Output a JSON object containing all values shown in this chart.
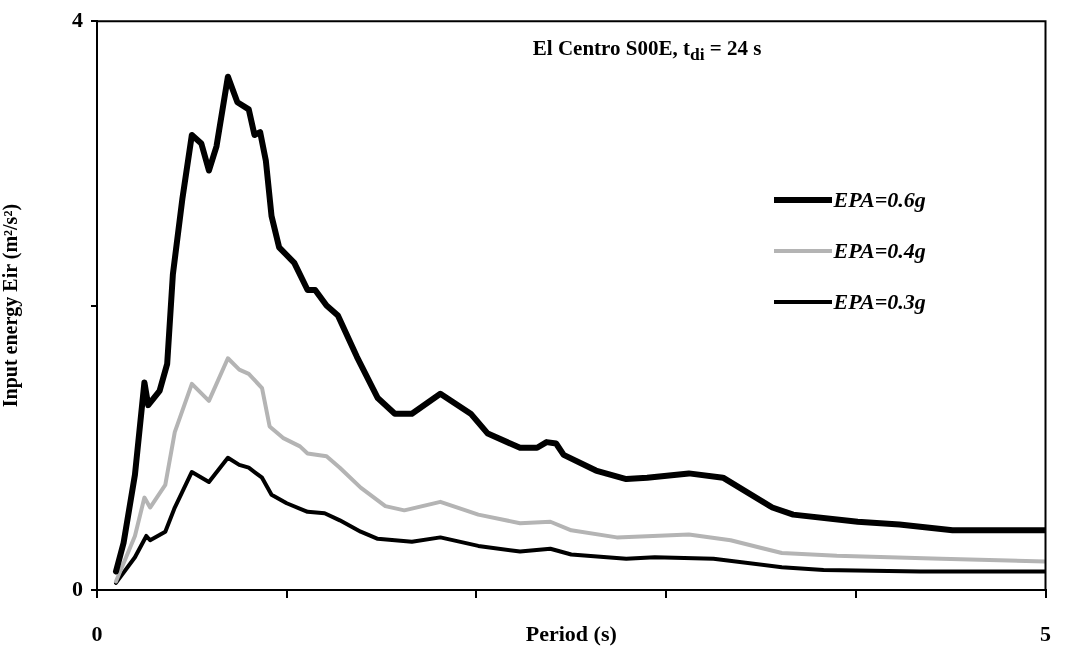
{
  "chart_data": {
    "type": "line",
    "title": "El Centro S00E, t$_{di}$ = 24 s",
    "xlabel": "Period (s)",
    "ylabel": "Input energy Eir (m²/s²)",
    "xlim": [
      0,
      5
    ],
    "xticks": [
      0,
      {
        "value": 1,
        "label": null
      },
      {
        "value": 2,
        "label": null
      },
      {
        "value": 3,
        "label": null
      },
      {
        "value": 4,
        "label": null
      },
      5
    ],
    "ylim": [
      0,
      4
    ],
    "yticks": [
      0,
      {
        "value": 2,
        "label": null
      },
      4
    ],
    "grid": false,
    "legend": "right",
    "marker": "none",
    "line_style": "solid",
    "series": [
      {
        "name": "EPA=0.6g",
        "color": "#000000",
        "x": [
          0.1,
          0.14,
          0.2,
          0.25,
          0.27,
          0.33,
          0.37,
          0.4,
          0.45,
          0.5,
          0.55,
          0.59,
          0.63,
          0.69,
          0.74,
          0.8,
          0.83,
          0.86,
          0.89,
          0.92,
          0.96,
          1.04,
          1.11,
          1.15,
          1.21,
          1.27,
          1.37,
          1.48,
          1.57,
          1.66,
          1.81,
          1.97,
          2.06,
          2.23,
          2.32,
          2.37,
          2.42,
          2.46,
          2.63,
          2.79,
          2.9,
          3.12,
          3.3,
          3.56,
          3.67,
          4.01,
          4.23,
          4.51,
          5.0
        ],
        "values": [
          0.13,
          0.33,
          0.81,
          1.46,
          1.3,
          1.4,
          1.59,
          2.22,
          2.75,
          3.2,
          3.14,
          2.95,
          3.12,
          3.61,
          3.43,
          3.38,
          3.2,
          3.22,
          3.02,
          2.63,
          2.41,
          2.3,
          2.11,
          2.11,
          2.0,
          1.93,
          1.64,
          1.35,
          1.24,
          1.24,
          1.38,
          1.24,
          1.1,
          1.0,
          1.0,
          1.04,
          1.03,
          0.95,
          0.84,
          0.78,
          0.79,
          0.82,
          0.79,
          0.58,
          0.53,
          0.48,
          0.46,
          0.42,
          0.42
        ]
      },
      {
        "name": "EPA=0.4g",
        "color": "#b4b4b4",
        "x": [
          0.1,
          0.2,
          0.25,
          0.28,
          0.36,
          0.41,
          0.5,
          0.59,
          0.69,
          0.75,
          0.8,
          0.87,
          0.91,
          0.98,
          1.07,
          1.11,
          1.21,
          1.28,
          1.39,
          1.52,
          1.62,
          1.81,
          2.01,
          2.23,
          2.39,
          2.5,
          2.74,
          3.12,
          3.34,
          3.61,
          3.9,
          4.45,
          5.0
        ],
        "values": [
          0.06,
          0.38,
          0.65,
          0.58,
          0.74,
          1.11,
          1.45,
          1.33,
          1.63,
          1.55,
          1.52,
          1.42,
          1.15,
          1.07,
          1.01,
          0.96,
          0.94,
          0.86,
          0.72,
          0.59,
          0.56,
          0.62,
          0.53,
          0.47,
          0.48,
          0.42,
          0.37,
          0.39,
          0.35,
          0.26,
          0.24,
          0.22,
          0.2
        ]
      },
      {
        "name": "EPA=0.3g",
        "color": "#000000",
        "x": [
          0.1,
          0.2,
          0.26,
          0.28,
          0.36,
          0.41,
          0.5,
          0.59,
          0.69,
          0.75,
          0.8,
          0.87,
          0.92,
          1.0,
          1.11,
          1.2,
          1.28,
          1.39,
          1.48,
          1.66,
          1.81,
          2.01,
          2.23,
          2.39,
          2.5,
          2.79,
          2.94,
          3.25,
          3.61,
          3.83,
          4.34,
          5.0
        ],
        "values": [
          0.05,
          0.23,
          0.38,
          0.35,
          0.41,
          0.58,
          0.83,
          0.76,
          0.93,
          0.88,
          0.86,
          0.79,
          0.67,
          0.61,
          0.55,
          0.54,
          0.49,
          0.41,
          0.36,
          0.34,
          0.37,
          0.31,
          0.27,
          0.29,
          0.25,
          0.22,
          0.23,
          0.22,
          0.16,
          0.14,
          0.13,
          0.13
        ]
      }
    ]
  }
}
